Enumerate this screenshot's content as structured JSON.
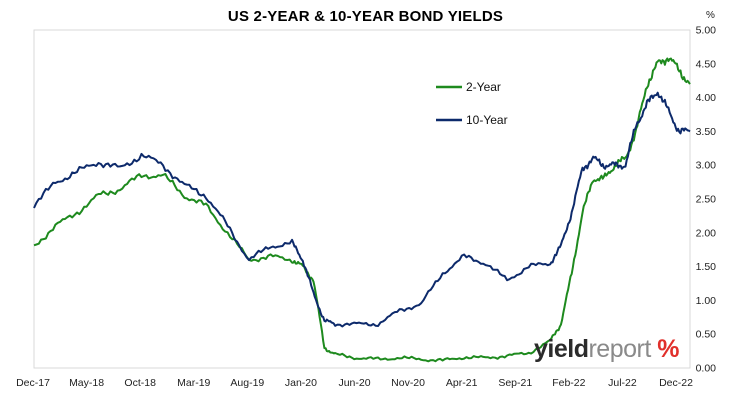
{
  "chart_data": {
    "type": "line",
    "title": "US 2-YEAR & 10-YEAR BOND YIELDS",
    "ylabel": "%",
    "ylim": [
      0,
      5
    ],
    "yticks": [
      "0.00",
      "0.50",
      "1.00",
      "1.50",
      "2.00",
      "2.50",
      "3.00",
      "3.50",
      "4.00",
      "4.50",
      "5.00"
    ],
    "xlim": [
      2017.917,
      2023.0
    ],
    "xtick_labels": [
      "Dec-17",
      "May-18",
      "Oct-18",
      "Mar-19",
      "Aug-19",
      "Jan-20",
      "Jun-20",
      "Nov-20",
      "Apr-21",
      "Sep-21",
      "Feb-22",
      "Jul-22",
      "Dec-22"
    ],
    "x": [
      2017.917,
      2018.083,
      2018.25,
      2018.417,
      2018.583,
      2018.75,
      2018.917,
      2019.083,
      2019.25,
      2019.417,
      2019.583,
      2019.75,
      2019.917,
      2020.0,
      2020.083,
      2020.167,
      2020.25,
      2020.417,
      2020.583,
      2020.75,
      2020.917,
      2021.083,
      2021.25,
      2021.417,
      2021.583,
      2021.75,
      2021.917,
      2022.0,
      2022.083,
      2022.167,
      2022.25,
      2022.333,
      2022.417,
      2022.5,
      2022.583,
      2022.667,
      2022.75,
      2022.833,
      2022.917,
      2023.0
    ],
    "series": [
      {
        "name": "2-Year",
        "color": "#1e8a1e",
        "values": [
          1.8,
          2.1,
          2.3,
          2.55,
          2.65,
          2.85,
          2.85,
          2.55,
          2.4,
          2.0,
          1.6,
          1.65,
          1.6,
          1.5,
          1.3,
          0.3,
          0.2,
          0.15,
          0.13,
          0.15,
          0.13,
          0.11,
          0.16,
          0.15,
          0.18,
          0.22,
          0.4,
          0.65,
          1.4,
          2.3,
          2.8,
          2.8,
          3.0,
          3.1,
          3.5,
          4.2,
          4.5,
          4.6,
          4.4,
          4.2
        ]
      },
      {
        "name": "10-Year",
        "color": "#0d2a6b",
        "values": [
          2.4,
          2.75,
          2.9,
          3.05,
          2.95,
          3.15,
          3.0,
          2.7,
          2.55,
          2.1,
          1.6,
          1.8,
          1.85,
          1.6,
          1.1,
          0.7,
          0.65,
          0.65,
          0.65,
          0.85,
          0.95,
          1.4,
          1.65,
          1.55,
          1.3,
          1.5,
          1.55,
          1.8,
          2.3,
          2.95,
          3.1,
          3.0,
          3.0,
          3.0,
          3.6,
          3.9,
          4.1,
          3.8,
          3.5,
          3.5
        ]
      }
    ],
    "legend": [
      "2-Year",
      "10-Year"
    ],
    "legend_position": "top-right",
    "grid": false
  },
  "branding": {
    "part1": "yield",
    "part2": "report",
    "part3": " %"
  }
}
